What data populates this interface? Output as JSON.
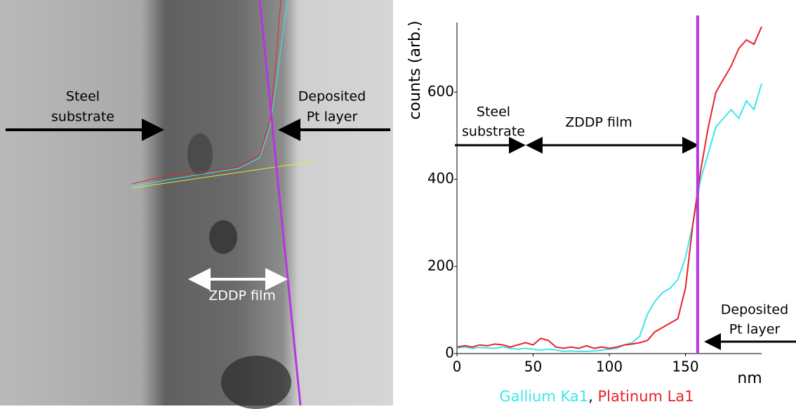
{
  "image": {
    "left_label": [
      "Steel",
      "substrate"
    ],
    "right_label": [
      "Deposited",
      "Pt layer"
    ],
    "film_label": "ZDDP film"
  },
  "chart_data": {
    "type": "line",
    "y_label": "counts (arb.)",
    "x_label": "nm",
    "xlim": [
      0,
      200
    ],
    "xticks": [
      0,
      50,
      100,
      150
    ],
    "ylim": [
      0,
      760
    ],
    "yticks": [
      0,
      200,
      400,
      600
    ],
    "marker_x": 158,
    "marker_color": "#b935e0",
    "legend_separator": ",",
    "annotations": {
      "left": [
        "Steel",
        "substrate"
      ],
      "middle": "ZDDP film",
      "right": [
        "Deposited",
        "Pt layer"
      ]
    },
    "x": [
      0,
      5,
      10,
      15,
      20,
      25,
      30,
      35,
      40,
      45,
      50,
      55,
      60,
      65,
      70,
      75,
      80,
      85,
      90,
      95,
      100,
      105,
      110,
      115,
      120,
      125,
      130,
      135,
      140,
      145,
      150,
      155,
      160,
      165,
      170,
      175,
      180,
      185,
      190,
      195,
      200
    ],
    "series": [
      {
        "name": "Gallium Ka1",
        "color": "#3ee6ea",
        "values": [
          12,
          15,
          12,
          14,
          13,
          12,
          15,
          12,
          10,
          12,
          10,
          8,
          10,
          8,
          5,
          6,
          5,
          5,
          6,
          8,
          10,
          12,
          20,
          25,
          40,
          90,
          120,
          140,
          150,
          170,
          220,
          300,
          400,
          460,
          520,
          540,
          560,
          540,
          580,
          560,
          620
        ]
      },
      {
        "name": "Platinum La1",
        "color": "#e8232a",
        "values": [
          15,
          18,
          15,
          20,
          18,
          22,
          20,
          15,
          20,
          25,
          20,
          35,
          30,
          15,
          12,
          15,
          12,
          18,
          12,
          15,
          12,
          15,
          20,
          22,
          25,
          30,
          50,
          60,
          70,
          80,
          150,
          300,
          420,
          520,
          600,
          630,
          660,
          700,
          720,
          710,
          750
        ]
      }
    ]
  }
}
